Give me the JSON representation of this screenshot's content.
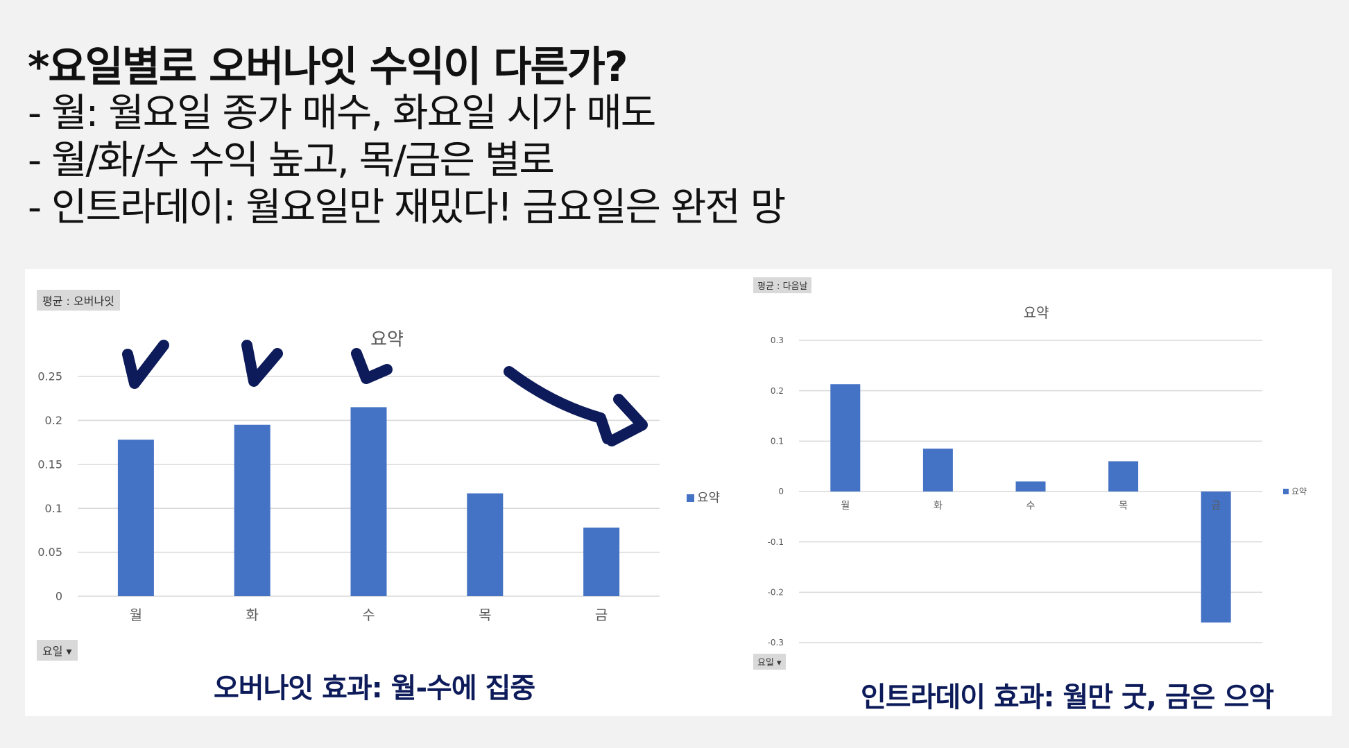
{
  "slide": {
    "title": "*요일별로 오버나잇 수익이 다른가?",
    "bullets": [
      "- 월: 월요일 종가 매수, 화요일 시가 매도",
      "- 월/화/수 수익 높고, 목/금은 별로",
      "- 인트라데이: 월요일만 재밌다! 금요일은 완전 망"
    ]
  },
  "left_panel": {
    "field_label": "평균 : 오버나잇",
    "axis_field_label": "요일 ▾",
    "caption": "오버나잇 효과: 월-수에 집중"
  },
  "right_panel": {
    "field_label": "평균 : 다음날",
    "axis_field_label": "요일 ▾",
    "caption": "인트라데이 효과: 월만 굿, 금은 으악"
  },
  "colors": {
    "bar": "#4472c4",
    "grid": "#d9d9d9",
    "annotation": "#0d1b5a",
    "caption": "#0d1b5a"
  },
  "chart_data": [
    {
      "type": "bar",
      "title": "요약",
      "categories": [
        "월",
        "화",
        "수",
        "목",
        "금"
      ],
      "series": [
        {
          "name": "요약",
          "values": [
            0.178,
            0.195,
            0.215,
            0.117,
            0.078
          ]
        }
      ],
      "ylim": [
        0,
        0.25
      ],
      "yticks": [
        0,
        0.05,
        0.1,
        0.15,
        0.2,
        0.25
      ],
      "ytick_labels": [
        "0",
        "0.05",
        "0.1",
        "0.15",
        "0.2",
        "0.25"
      ],
      "grid": true,
      "legend": "right"
    },
    {
      "type": "bar",
      "title": "요약",
      "categories": [
        "월",
        "화",
        "수",
        "목",
        "금"
      ],
      "series": [
        {
          "name": "요약",
          "values": [
            0.213,
            0.085,
            0.02,
            0.06,
            -0.26
          ]
        }
      ],
      "ylim": [
        -0.3,
        0.3
      ],
      "yticks": [
        -0.3,
        -0.2,
        -0.1,
        0,
        0.1,
        0.2,
        0.3
      ],
      "ytick_labels": [
        "-0.3",
        "-0.2",
        "-0.1",
        "0",
        "0.1",
        "0.2",
        "0.3"
      ],
      "grid": true,
      "legend": "right"
    }
  ]
}
